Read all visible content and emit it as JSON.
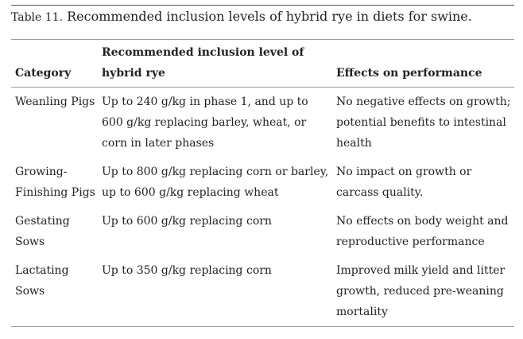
{
  "caption": {
    "label": "Table 11.",
    "text": " Recommended inclusion levels of hybrid rye in diets for swine."
  },
  "table": {
    "headers": [
      "Category",
      "Recommended inclusion level of hybrid rye",
      "Effects on performance"
    ],
    "rows": [
      {
        "category": "Weanling Pigs",
        "level": "Up to 240 g/kg in phase 1, and up to 600 g/kg replacing barley, wheat, or corn in later phases",
        "effects": "No negative effects on growth; potential benefits to intestinal health"
      },
      {
        "category": "Growing-Finishing Pigs",
        "level": "Up to 800 g/kg replacing corn or barley, up to 600 g/kg replacing wheat",
        "effects": "No impact on growth or carcass quality."
      },
      {
        "category": "Gestating Sows",
        "level": "Up to 600 g/kg replacing corn",
        "effects": "No effects on body weight and reproductive performance"
      },
      {
        "category": "Lactating Sows",
        "level": "Up to 350 g/kg replacing corn",
        "effects": "Improved milk yield and litter growth, reduced pre-weaning mortality"
      }
    ]
  }
}
